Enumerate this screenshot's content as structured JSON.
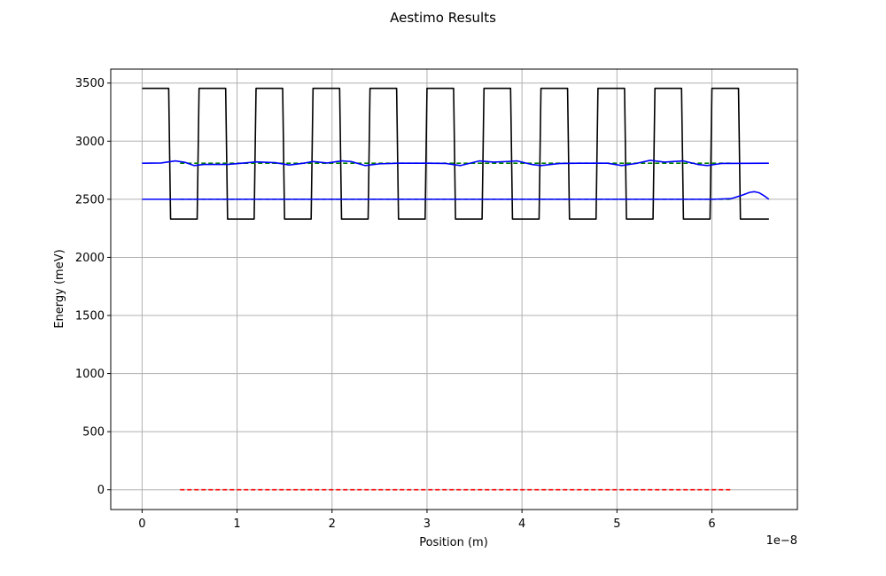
{
  "chart_data": {
    "type": "line",
    "title": "Aestimo Results",
    "xlabel": "Position (m)",
    "ylabel": "Energy (meV)",
    "x_offset_label": "1e−8",
    "xlim": [
      -0.33,
      6.9
    ],
    "ylim": [
      -170,
      3620
    ],
    "x_ticks": [
      0,
      1,
      2,
      3,
      4,
      5,
      6
    ],
    "x_tick_labels": [
      "0",
      "1",
      "2",
      "3",
      "4",
      "5",
      "6"
    ],
    "y_ticks": [
      0,
      500,
      1000,
      1500,
      2000,
      2500,
      3000,
      3500
    ],
    "y_tick_labels": [
      "0",
      "500",
      "1000",
      "1500",
      "2000",
      "2500",
      "3000",
      "3500"
    ],
    "grid": true,
    "colors": {
      "potential": "#000000",
      "wavefunction": "#0000ff",
      "level_dashed": "#008000",
      "fermi_dashed": "#ff0000",
      "grid": "#b0b0b0"
    },
    "series": [
      {
        "name": "conduction-band-potential",
        "style": "solid",
        "color": "#000000",
        "points": [
          [
            0,
            3455
          ],
          [
            0.28,
            3455
          ],
          [
            0.3,
            2330
          ],
          [
            0.58,
            2330
          ],
          [
            0.6,
            3455
          ],
          [
            0.88,
            3455
          ],
          [
            0.9,
            2330
          ],
          [
            1.18,
            2330
          ],
          [
            1.2,
            3455
          ],
          [
            1.48,
            3455
          ],
          [
            1.5,
            2330
          ],
          [
            1.78,
            2330
          ],
          [
            1.8,
            3455
          ],
          [
            2.08,
            3455
          ],
          [
            2.1,
            2330
          ],
          [
            2.38,
            2330
          ],
          [
            2.4,
            3455
          ],
          [
            2.68,
            3455
          ],
          [
            2.7,
            2330
          ],
          [
            2.98,
            2330
          ],
          [
            3.0,
            3455
          ],
          [
            3.28,
            3455
          ],
          [
            3.3,
            2330
          ],
          [
            3.58,
            2330
          ],
          [
            3.6,
            3455
          ],
          [
            3.88,
            3455
          ],
          [
            3.9,
            2330
          ],
          [
            4.18,
            2330
          ],
          [
            4.2,
            3455
          ],
          [
            4.48,
            3455
          ],
          [
            4.5,
            2330
          ],
          [
            4.78,
            2330
          ],
          [
            4.8,
            3455
          ],
          [
            5.08,
            3455
          ],
          [
            5.1,
            2330
          ],
          [
            5.38,
            2330
          ],
          [
            5.4,
            3455
          ],
          [
            5.68,
            3455
          ],
          [
            5.7,
            2330
          ],
          [
            5.98,
            2330
          ],
          [
            6.0,
            3455
          ],
          [
            6.28,
            3455
          ],
          [
            6.3,
            2330
          ],
          [
            6.6,
            2330
          ]
        ]
      },
      {
        "name": "energy-level-1-dashed",
        "style": "dashed",
        "color": "#008000",
        "points": [
          [
            0.4,
            2500
          ],
          [
            6.2,
            2500
          ]
        ]
      },
      {
        "name": "energy-level-2-dashed",
        "style": "dashed",
        "color": "#008000",
        "points": [
          [
            0.4,
            2810
          ],
          [
            6.2,
            2810
          ]
        ]
      },
      {
        "name": "wavefunction-1",
        "style": "solid",
        "color": "#0000ff",
        "points": [
          [
            0,
            2500
          ],
          [
            0.6,
            2500
          ],
          [
            1.2,
            2500
          ],
          [
            2.0,
            2500
          ],
          [
            3.0,
            2500
          ],
          [
            4.0,
            2500
          ],
          [
            5.0,
            2500
          ],
          [
            6.0,
            2500
          ],
          [
            6.2,
            2505
          ],
          [
            6.3,
            2530
          ],
          [
            6.4,
            2560
          ],
          [
            6.45,
            2565
          ],
          [
            6.5,
            2555
          ],
          [
            6.55,
            2530
          ],
          [
            6.6,
            2500
          ]
        ]
      },
      {
        "name": "wavefunction-2",
        "style": "solid",
        "color": "#0000ff",
        "points": [
          [
            0,
            2810
          ],
          [
            0.2,
            2812
          ],
          [
            0.35,
            2830
          ],
          [
            0.45,
            2818
          ],
          [
            0.55,
            2790
          ],
          [
            0.65,
            2800
          ],
          [
            0.9,
            2800
          ],
          [
            1.05,
            2810
          ],
          [
            1.2,
            2822
          ],
          [
            1.4,
            2815
          ],
          [
            1.55,
            2795
          ],
          [
            1.7,
            2810
          ],
          [
            1.8,
            2825
          ],
          [
            1.95,
            2812
          ],
          [
            2.1,
            2830
          ],
          [
            2.2,
            2825
          ],
          [
            2.35,
            2790
          ],
          [
            2.5,
            2805
          ],
          [
            2.7,
            2810
          ],
          [
            3.0,
            2810
          ],
          [
            3.2,
            2808
          ],
          [
            3.35,
            2790
          ],
          [
            3.55,
            2830
          ],
          [
            3.7,
            2820
          ],
          [
            3.85,
            2825
          ],
          [
            3.95,
            2830
          ],
          [
            4.1,
            2800
          ],
          [
            4.2,
            2790
          ],
          [
            4.4,
            2808
          ],
          [
            4.6,
            2810
          ],
          [
            4.9,
            2810
          ],
          [
            5.05,
            2790
          ],
          [
            5.2,
            2808
          ],
          [
            5.35,
            2835
          ],
          [
            5.5,
            2820
          ],
          [
            5.7,
            2830
          ],
          [
            5.85,
            2800
          ],
          [
            5.95,
            2790
          ],
          [
            6.1,
            2808
          ],
          [
            6.6,
            2810
          ]
        ]
      },
      {
        "name": "fermi-level",
        "style": "dashed",
        "color": "#ff0000",
        "points": [
          [
            0.4,
            0
          ],
          [
            6.2,
            0
          ]
        ]
      }
    ]
  }
}
